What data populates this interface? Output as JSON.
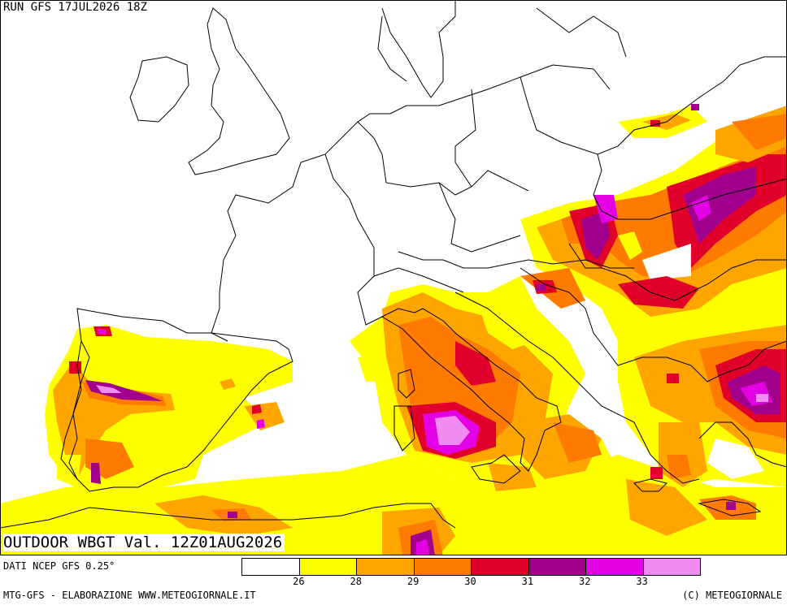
{
  "header": {
    "run_label": "RUN GFS 17JUL2026 18Z"
  },
  "map": {
    "title": "OUTDOOR WBGT Val. 12Z01AUG2026",
    "variable": "WBGT",
    "colors": {
      "below_26": "#ffffff",
      "c26_28": "#ffff00",
      "c28_29": "#ffa500",
      "c29_30": "#ff7a00",
      "c30_31": "#e0002a",
      "c31_32": "#a0008c",
      "c32_33": "#e400e4",
      "c33_plus": "#f08cf0",
      "border": "#000000"
    }
  },
  "legend": {
    "colors": [
      "#ffffff",
      "#ffff00",
      "#ffa500",
      "#ff7a00",
      "#e0002a",
      "#a0008c",
      "#e400e4",
      "#f08cf0"
    ],
    "ticks": [
      "26",
      "28",
      "29",
      "30",
      "31",
      "32",
      "33"
    ]
  },
  "footer": {
    "source": "DATI NCEP GFS 0.25°",
    "credit_left": "MTG-GFS - ELABORAZIONE WWW.METEOGIORNALE.IT",
    "credit_right": "(C) METEOGIORNALE"
  }
}
